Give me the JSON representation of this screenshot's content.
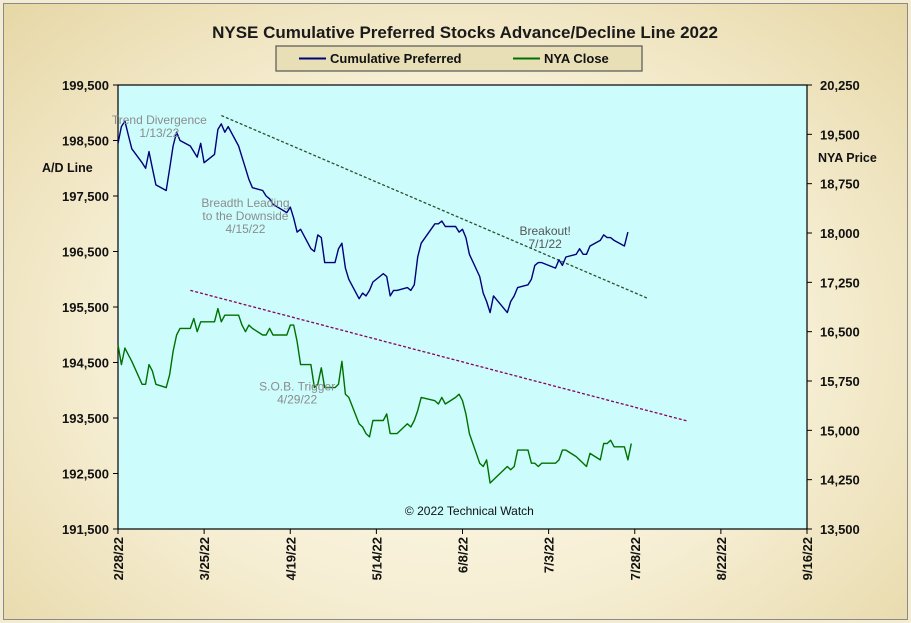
{
  "chart_data": {
    "type": "line",
    "title": "NYSE Cumulative  Preferred Stocks Advance/Decline  Line  2022",
    "left_axis": {
      "label": "A/D Line",
      "ylim": [
        191500,
        199500
      ],
      "ticks": [
        "199,500",
        "198,500",
        "197,500",
        "196,500",
        "195,500",
        "194,500",
        "193,500",
        "192,500",
        "191,500"
      ]
    },
    "right_axis": {
      "label": "NYA Price",
      "ylim": [
        13500,
        20250
      ],
      "ticks": [
        "20,250",
        "19,500",
        "18,750",
        "18,000",
        "17,250",
        "16,500",
        "15,750",
        "15,000",
        "14,250",
        "13,500"
      ]
    },
    "x_ticks": [
      "2/28/22",
      "3/25/22",
      "4/19/22",
      "5/14/22",
      "6/8/22",
      "7/3/22",
      "7/28/22",
      "8/22/22",
      "9/16/22"
    ],
    "x_range": [
      "2022-02-28",
      "2022-09-16"
    ],
    "legend": {
      "placement": "top-center"
    },
    "series": [
      {
        "name": "Cumulative Preferred",
        "axis": "left",
        "color": "#00007a",
        "points": [
          [
            "2022-02-28",
            198450
          ],
          [
            "2022-03-01",
            198750
          ],
          [
            "2022-03-02",
            198850
          ],
          [
            "2022-03-03",
            198600
          ],
          [
            "2022-03-04",
            198350
          ],
          [
            "2022-03-07",
            198100
          ],
          [
            "2022-03-08",
            198000
          ],
          [
            "2022-03-09",
            198300
          ],
          [
            "2022-03-10",
            198000
          ],
          [
            "2022-03-11",
            197700
          ],
          [
            "2022-03-14",
            197600
          ],
          [
            "2022-03-15",
            198000
          ],
          [
            "2022-03-16",
            198400
          ],
          [
            "2022-03-17",
            198650
          ],
          [
            "2022-03-18",
            198500
          ],
          [
            "2022-03-21",
            198400
          ],
          [
            "2022-03-22",
            198300
          ],
          [
            "2022-03-23",
            198200
          ],
          [
            "2022-03-24",
            198450
          ],
          [
            "2022-03-25",
            198100
          ],
          [
            "2022-03-28",
            198250
          ],
          [
            "2022-03-29",
            198700
          ],
          [
            "2022-03-30",
            198800
          ],
          [
            "2022-03-31",
            198650
          ],
          [
            "2022-04-01",
            198750
          ],
          [
            "2022-04-04",
            198400
          ],
          [
            "2022-04-05",
            198200
          ],
          [
            "2022-04-06",
            198000
          ],
          [
            "2022-04-07",
            197800
          ],
          [
            "2022-04-08",
            197650
          ],
          [
            "2022-04-11",
            197600
          ],
          [
            "2022-04-12",
            197500
          ],
          [
            "2022-04-13",
            197450
          ],
          [
            "2022-04-14",
            197350
          ],
          [
            "2022-04-18",
            197200
          ],
          [
            "2022-04-19",
            197300
          ],
          [
            "2022-04-20",
            197100
          ],
          [
            "2022-04-21",
            196850
          ],
          [
            "2022-04-22",
            196900
          ],
          [
            "2022-04-25",
            196550
          ],
          [
            "2022-04-26",
            196500
          ],
          [
            "2022-04-27",
            196800
          ],
          [
            "2022-04-28",
            196750
          ],
          [
            "2022-04-29",
            196300
          ],
          [
            "2022-05-02",
            196300
          ],
          [
            "2022-05-03",
            196550
          ],
          [
            "2022-05-04",
            196650
          ],
          [
            "2022-05-05",
            196200
          ],
          [
            "2022-05-06",
            196000
          ],
          [
            "2022-05-09",
            195650
          ],
          [
            "2022-05-10",
            195750
          ],
          [
            "2022-05-11",
            195700
          ],
          [
            "2022-05-12",
            195800
          ],
          [
            "2022-05-13",
            195950
          ],
          [
            "2022-05-16",
            196100
          ],
          [
            "2022-05-17",
            196050
          ],
          [
            "2022-05-18",
            195700
          ],
          [
            "2022-05-19",
            195800
          ],
          [
            "2022-05-20",
            195800
          ],
          [
            "2022-05-23",
            195850
          ],
          [
            "2022-05-24",
            195800
          ],
          [
            "2022-05-25",
            195900
          ],
          [
            "2022-05-26",
            196400
          ],
          [
            "2022-05-27",
            196650
          ],
          [
            "2022-05-31",
            197000
          ],
          [
            "2022-06-01",
            197000
          ],
          [
            "2022-06-02",
            197050
          ],
          [
            "2022-06-03",
            196950
          ],
          [
            "2022-06-06",
            196950
          ],
          [
            "2022-06-07",
            196850
          ],
          [
            "2022-06-08",
            196900
          ],
          [
            "2022-06-09",
            196750
          ],
          [
            "2022-06-10",
            196450
          ],
          [
            "2022-06-13",
            196050
          ],
          [
            "2022-06-14",
            195750
          ],
          [
            "2022-06-15",
            195600
          ],
          [
            "2022-06-16",
            195400
          ],
          [
            "2022-06-17",
            195700
          ],
          [
            "2022-06-21",
            195400
          ],
          [
            "2022-06-22",
            195600
          ],
          [
            "2022-06-23",
            195700
          ],
          [
            "2022-06-24",
            195850
          ],
          [
            "2022-06-27",
            195900
          ],
          [
            "2022-06-28",
            196000
          ],
          [
            "2022-06-29",
            196250
          ],
          [
            "2022-06-30",
            196300
          ],
          [
            "2022-07-01",
            196300
          ],
          [
            "2022-07-05",
            196200
          ],
          [
            "2022-07-06",
            196350
          ],
          [
            "2022-07-07",
            196250
          ],
          [
            "2022-07-08",
            196400
          ],
          [
            "2022-07-11",
            196450
          ],
          [
            "2022-07-12",
            196550
          ],
          [
            "2022-07-13",
            196450
          ],
          [
            "2022-07-14",
            196450
          ],
          [
            "2022-07-15",
            196600
          ],
          [
            "2022-07-18",
            196700
          ],
          [
            "2022-07-19",
            196800
          ],
          [
            "2022-07-20",
            196750
          ],
          [
            "2022-07-21",
            196750
          ],
          [
            "2022-07-22",
            196700
          ],
          [
            "2022-07-25",
            196600
          ],
          [
            "2022-07-26",
            196850
          ]
        ]
      },
      {
        "name": "NYA Close",
        "axis": "right",
        "color": "#007000",
        "points": [
          [
            "2022-02-28",
            16300
          ],
          [
            "2022-03-01",
            16000
          ],
          [
            "2022-03-02",
            16250
          ],
          [
            "2022-03-03",
            16150
          ],
          [
            "2022-03-04",
            16050
          ],
          [
            "2022-03-07",
            15700
          ],
          [
            "2022-03-08",
            15700
          ],
          [
            "2022-03-09",
            16000
          ],
          [
            "2022-03-10",
            15900
          ],
          [
            "2022-03-11",
            15700
          ],
          [
            "2022-03-14",
            15650
          ],
          [
            "2022-03-15",
            15850
          ],
          [
            "2022-03-16",
            16200
          ],
          [
            "2022-03-17",
            16450
          ],
          [
            "2022-03-18",
            16550
          ],
          [
            "2022-03-21",
            16550
          ],
          [
            "2022-03-22",
            16700
          ],
          [
            "2022-03-23",
            16500
          ],
          [
            "2022-03-24",
            16650
          ],
          [
            "2022-03-25",
            16650
          ],
          [
            "2022-03-28",
            16650
          ],
          [
            "2022-03-29",
            16850
          ],
          [
            "2022-03-30",
            16650
          ],
          [
            "2022-03-31",
            16750
          ],
          [
            "2022-04-01",
            16750
          ],
          [
            "2022-04-04",
            16750
          ],
          [
            "2022-04-05",
            16600
          ],
          [
            "2022-04-06",
            16500
          ],
          [
            "2022-04-07",
            16600
          ],
          [
            "2022-04-08",
            16550
          ],
          [
            "2022-04-11",
            16450
          ],
          [
            "2022-04-12",
            16450
          ],
          [
            "2022-04-13",
            16550
          ],
          [
            "2022-04-14",
            16450
          ],
          [
            "2022-04-18",
            16450
          ],
          [
            "2022-04-19",
            16600
          ],
          [
            "2022-04-20",
            16600
          ],
          [
            "2022-04-21",
            16350
          ],
          [
            "2022-04-22",
            16000
          ],
          [
            "2022-04-25",
            16000
          ],
          [
            "2022-04-26",
            15650
          ],
          [
            "2022-04-27",
            15700
          ],
          [
            "2022-04-28",
            15950
          ],
          [
            "2022-04-29",
            15650
          ],
          [
            "2022-05-02",
            15650
          ],
          [
            "2022-05-03",
            15700
          ],
          [
            "2022-05-04",
            16050
          ],
          [
            "2022-05-05",
            15550
          ],
          [
            "2022-05-06",
            15500
          ],
          [
            "2022-05-09",
            15100
          ],
          [
            "2022-05-10",
            15050
          ],
          [
            "2022-05-11",
            14950
          ],
          [
            "2022-05-12",
            14900
          ],
          [
            "2022-05-13",
            15150
          ],
          [
            "2022-05-16",
            15150
          ],
          [
            "2022-05-17",
            15250
          ],
          [
            "2022-05-18",
            14950
          ],
          [
            "2022-05-19",
            14950
          ],
          [
            "2022-05-20",
            14950
          ],
          [
            "2022-05-23",
            15100
          ],
          [
            "2022-05-24",
            15050
          ],
          [
            "2022-05-25",
            15150
          ],
          [
            "2022-05-26",
            15300
          ],
          [
            "2022-05-27",
            15500
          ],
          [
            "2022-05-31",
            15450
          ],
          [
            "2022-06-01",
            15400
          ],
          [
            "2022-06-02",
            15500
          ],
          [
            "2022-06-03",
            15400
          ],
          [
            "2022-06-06",
            15500
          ],
          [
            "2022-06-07",
            15550
          ],
          [
            "2022-06-08",
            15450
          ],
          [
            "2022-06-09",
            15250
          ],
          [
            "2022-06-10",
            14950
          ],
          [
            "2022-06-13",
            14500
          ],
          [
            "2022-06-14",
            14450
          ],
          [
            "2022-06-15",
            14550
          ],
          [
            "2022-06-16",
            14200
          ],
          [
            "2022-06-17",
            14250
          ],
          [
            "2022-06-21",
            14450
          ],
          [
            "2022-06-22",
            14400
          ],
          [
            "2022-06-23",
            14450
          ],
          [
            "2022-06-24",
            14700
          ],
          [
            "2022-06-27",
            14700
          ],
          [
            "2022-06-28",
            14500
          ],
          [
            "2022-06-29",
            14500
          ],
          [
            "2022-06-30",
            14450
          ],
          [
            "2022-07-01",
            14500
          ],
          [
            "2022-07-05",
            14500
          ],
          [
            "2022-07-06",
            14550
          ],
          [
            "2022-07-07",
            14700
          ],
          [
            "2022-07-08",
            14700
          ],
          [
            "2022-07-11",
            14600
          ],
          [
            "2022-07-12",
            14550
          ],
          [
            "2022-07-13",
            14500
          ],
          [
            "2022-07-14",
            14450
          ],
          [
            "2022-07-15",
            14650
          ],
          [
            "2022-07-18",
            14550
          ],
          [
            "2022-07-19",
            14800
          ],
          [
            "2022-07-20",
            14800
          ],
          [
            "2022-07-21",
            14850
          ],
          [
            "2022-07-22",
            14750
          ],
          [
            "2022-07-25",
            14750
          ],
          [
            "2022-07-26",
            14550
          ],
          [
            "2022-07-27",
            14800
          ]
        ]
      }
    ],
    "trendlines": [
      {
        "axis": "left",
        "color": "#2f4f2f",
        "from": [
          "2022-03-30",
          198950
        ],
        "to": [
          "2022-08-01",
          195650
        ]
      },
      {
        "axis": "left",
        "color": "#8a005a",
        "from": [
          "2022-03-21",
          195800
        ],
        "to": [
          "2022-08-12",
          193450
        ]
      }
    ],
    "annotations": [
      {
        "lines": [
          "Trend  Divergence",
          "1/13/22"
        ],
        "style": "light",
        "at": [
          "2022-03-12",
          198800
        ]
      },
      {
        "lines": [
          "Breadth Leading",
          "to the Downside",
          "4/15/22"
        ],
        "style": "light",
        "at": [
          "2022-04-06",
          197300
        ]
      },
      {
        "lines": [
          "Breakout!",
          "7/1/22"
        ],
        "style": "dark",
        "at": [
          "2022-07-02",
          196800
        ]
      },
      {
        "lines": [
          "S.O.B. Trigger",
          "4/29/22"
        ],
        "style": "light",
        "at": [
          "2022-04-21",
          194000
        ]
      },
      {
        "lines": [
          "© 2022  Technical Watch"
        ],
        "style": "copy",
        "at": [
          "2022-06-10",
          191750
        ]
      }
    ],
    "grid": false
  }
}
